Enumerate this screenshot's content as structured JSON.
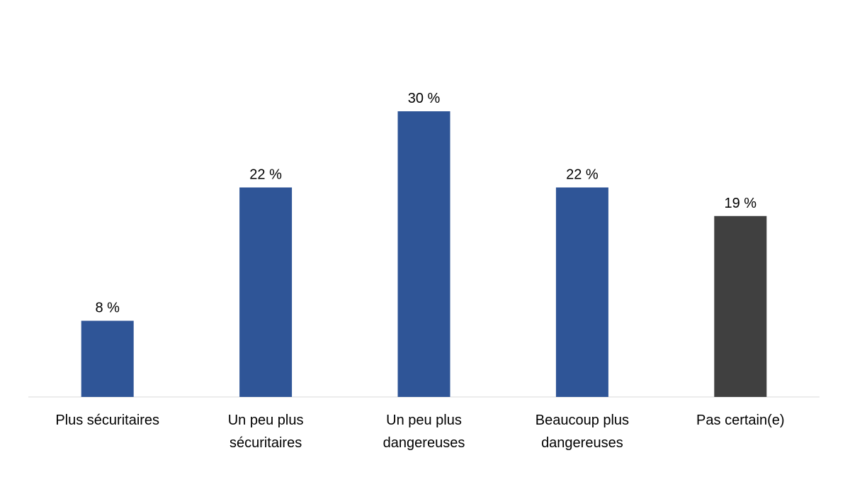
{
  "chart_data": {
    "type": "bar",
    "title": "",
    "xlabel": "",
    "ylabel": "",
    "categories": [
      [
        "Plus sécuritaires"
      ],
      [
        "Un peu plus",
        "sécuritaires"
      ],
      [
        "Un peu plus",
        "dangereuses"
      ],
      [
        "Beaucoup plus",
        "dangereuses"
      ],
      [
        "Pas certain(e)"
      ]
    ],
    "values": [
      8,
      22,
      30,
      22,
      19
    ],
    "data_labels": [
      "8 %",
      "22 %",
      "30 %",
      "22 %",
      "19 %"
    ],
    "colors": [
      "#2F5597",
      "#2F5597",
      "#2F5597",
      "#2F5597",
      "#404040"
    ],
    "ylim": [
      0,
      30
    ],
    "grid": false,
    "legend": "none"
  }
}
